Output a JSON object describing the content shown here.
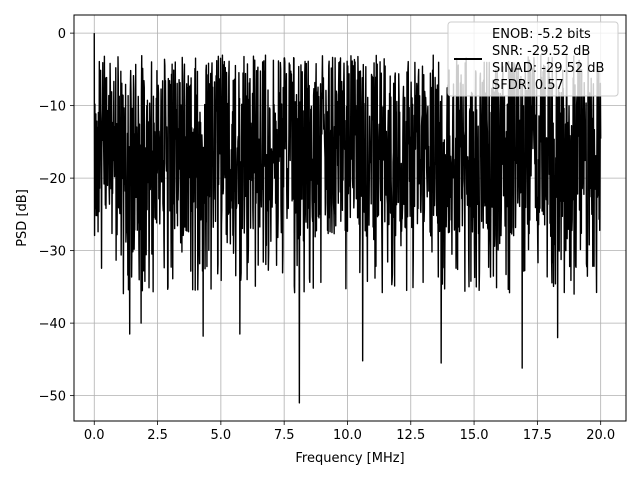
{
  "chart_data": {
    "type": "line",
    "xlabel": "Frequency [MHz]",
    "ylabel": "PSD [dB]",
    "xlim": [
      -0.8,
      21.0
    ],
    "ylim": [
      -53.5,
      2.5
    ],
    "x_ticks": [
      0.0,
      2.5,
      5.0,
      7.5,
      10.0,
      12.5,
      15.0,
      17.5,
      20.0
    ],
    "x_tick_labels": [
      "0.0",
      "2.5",
      "5.0",
      "7.5",
      "10.0",
      "12.5",
      "15.0",
      "17.5",
      "20.0"
    ],
    "y_ticks": [
      0,
      -10,
      -20,
      -30,
      -40,
      -50
    ],
    "y_tick_labels": [
      "0",
      "−10",
      "−20",
      "−30",
      "−40",
      "−50"
    ],
    "grid": true,
    "legend_position": "top-right",
    "series": [
      {
        "color": "#000000",
        "x_range": [
          0.0,
          20.0
        ],
        "upper_envelope_db": -6,
        "lower_envelope_db": -28,
        "peak": {
          "x": 0.0,
          "y": 0.0
        },
        "deep_dips": [
          {
            "x": 1.4,
            "y": -41.5
          },
          {
            "x": 1.85,
            "y": -40.0
          },
          {
            "x": 4.3,
            "y": -41.8
          },
          {
            "x": 5.75,
            "y": -41.5
          },
          {
            "x": 8.1,
            "y": -51.0
          },
          {
            "x": 10.6,
            "y": -45.2
          },
          {
            "x": 13.7,
            "y": -45.5
          },
          {
            "x": 16.9,
            "y": -46.2
          },
          {
            "x": 18.3,
            "y": -42.0
          }
        ]
      }
    ],
    "legend_lines": [
      "ENOB: -5.2 bits",
      "SNR: -29.52 dB",
      "SINAD: -29.52 dB",
      "SFDR: 0.57"
    ]
  }
}
